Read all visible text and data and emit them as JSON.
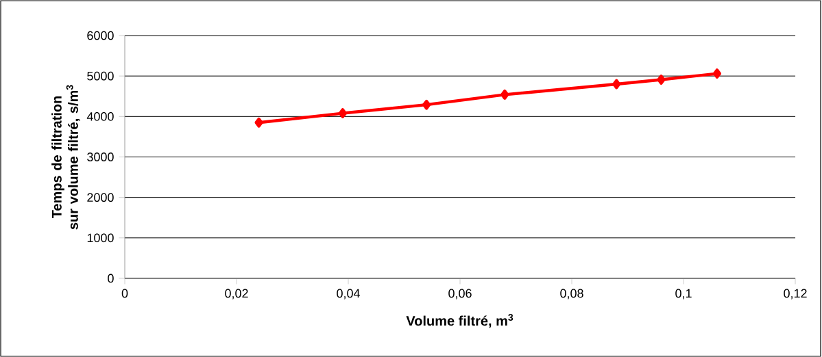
{
  "chart_data": {
    "type": "line",
    "xlabel": "Volume filtré, m$^{3}$",
    "ylabel": "Temps de filtration sur volume filtré, s/m$^{3}$",
    "x": [
      0.024,
      0.039,
      0.054,
      0.068,
      0.088,
      0.096,
      0.106
    ],
    "series": [
      {
        "color": "#ff0000",
        "values": [
          3850,
          4080,
          4290,
          4540,
          4800,
          4910,
          5060
        ]
      }
    ],
    "xlim": [
      0,
      0.12
    ],
    "ylim": [
      0,
      6000
    ],
    "xticks": [
      0,
      {
        "value": 0.02,
        "label": "0,02"
      },
      {
        "value": 0.04,
        "label": "0,04"
      },
      {
        "value": 0.06,
        "label": "0,06"
      },
      {
        "value": 0.08,
        "label": "0,08"
      },
      {
        "value": 0.1,
        "label": "0,1"
      },
      {
        "value": 0.12,
        "label": "0,12"
      }
    ],
    "yticks": [
      0,
      1000,
      2000,
      3000,
      4000,
      5000,
      6000
    ],
    "grid": "y",
    "marker": "diamond",
    "line_style": "solid"
  }
}
